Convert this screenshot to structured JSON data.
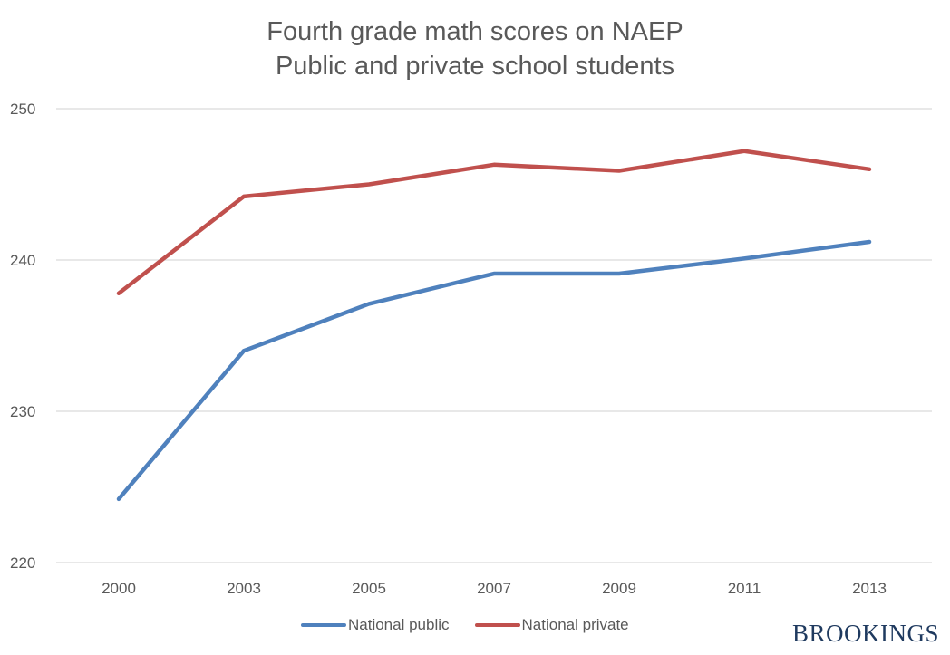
{
  "chart_data": {
    "type": "line",
    "title": "Fourth grade math scores on NAEP",
    "subtitle": "Public and private school students",
    "categories": [
      "2000",
      "2003",
      "2005",
      "2007",
      "2009",
      "2011",
      "2013"
    ],
    "series": [
      {
        "name": "National public",
        "color": "#4f81bd",
        "values": [
          224.2,
          234.0,
          237.1,
          239.1,
          239.1,
          240.1,
          241.2
        ]
      },
      {
        "name": "National private",
        "color": "#c0504d",
        "values": [
          237.8,
          244.2,
          245.0,
          246.3,
          245.9,
          247.2,
          246.0
        ]
      }
    ],
    "ylim": [
      220,
      250
    ],
    "yticks": [
      "220",
      "230",
      "240",
      "250"
    ],
    "xlabel": "",
    "ylabel": "",
    "grid": true,
    "legend_position": "bottom"
  },
  "brand": "BROOKINGS"
}
